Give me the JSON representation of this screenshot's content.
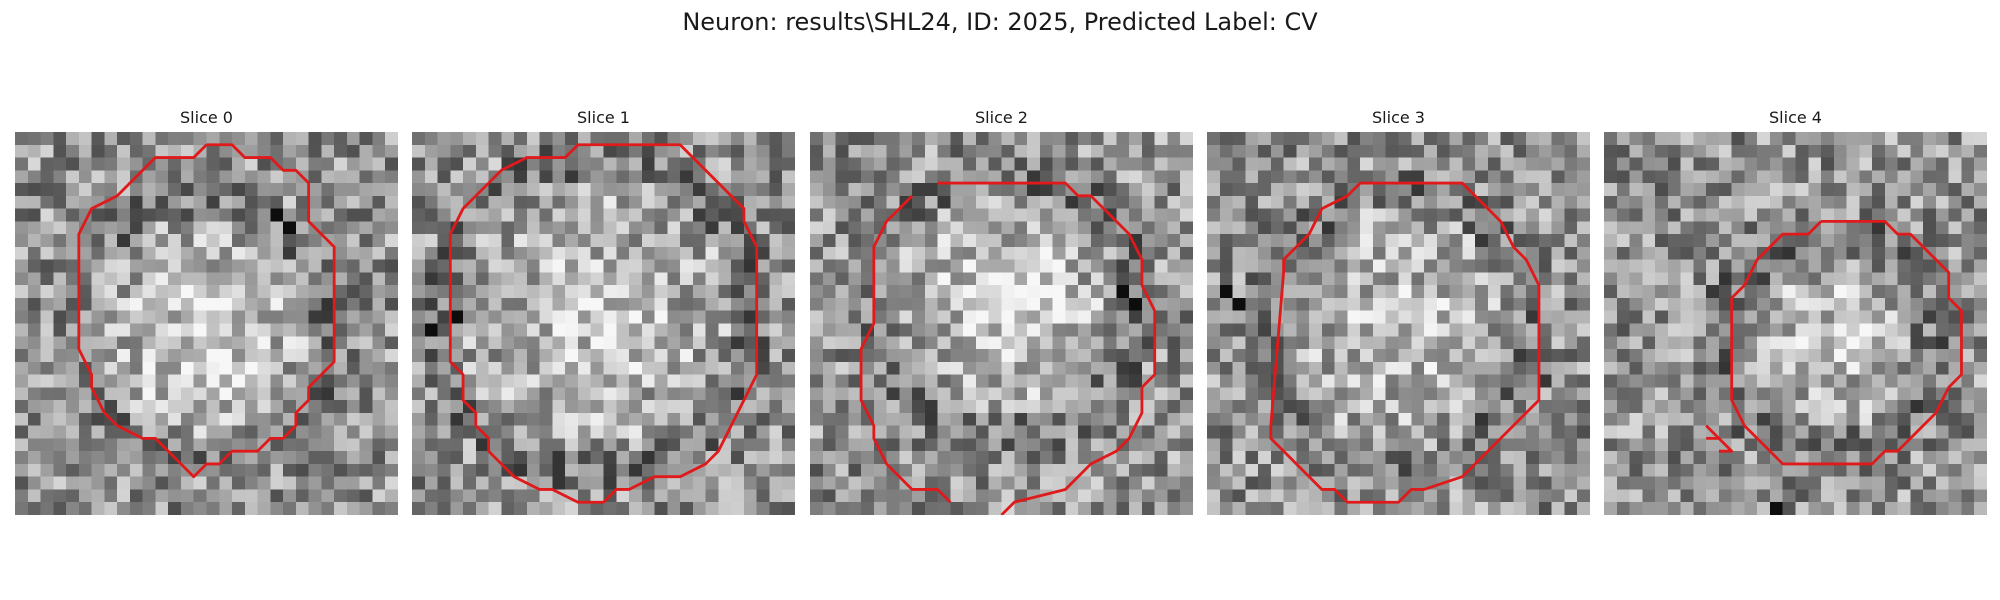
{
  "figure": {
    "title": "Neuron: results\\SHL24, ID: 2025, Predicted Label: CV"
  },
  "colors": {
    "contour": "#e0191b",
    "background": "#ffffff"
  },
  "panels": [
    {
      "title": "Slice 0",
      "seed": 11,
      "blobs": [
        {
          "cx": 14.5,
          "cy": 15.5,
          "r": 9,
          "amp": 0.22
        }
      ],
      "dark_spots": [
        [
          20,
          6
        ],
        [
          21,
          7
        ]
      ],
      "contours": [
        [
          [
            15,
            1
          ],
          [
            17,
            1
          ],
          [
            18,
            2
          ],
          [
            20,
            2
          ],
          [
            21,
            3
          ],
          [
            22,
            3
          ],
          [
            23,
            4
          ],
          [
            23,
            7
          ],
          [
            25,
            9
          ],
          [
            25,
            18
          ],
          [
            23,
            20
          ],
          [
            23,
            21
          ],
          [
            22,
            22
          ],
          [
            22,
            23
          ],
          [
            21,
            24
          ],
          [
            20,
            24
          ],
          [
            19,
            25
          ],
          [
            17,
            25
          ],
          [
            16,
            26
          ],
          [
            15,
            26
          ],
          [
            14,
            27
          ],
          [
            13,
            26
          ],
          [
            11,
            24
          ],
          [
            10,
            24
          ],
          [
            8,
            23
          ],
          [
            7,
            22
          ],
          [
            6,
            20
          ],
          [
            6,
            19
          ],
          [
            5,
            17
          ],
          [
            5,
            15
          ],
          [
            5,
            8
          ],
          [
            6,
            6
          ],
          [
            8,
            5
          ],
          [
            10,
            3
          ],
          [
            11,
            2
          ],
          [
            14,
            2
          ]
        ]
      ]
    },
    {
      "title": "Slice 1",
      "seed": 23,
      "blobs": [
        {
          "cx": 14.5,
          "cy": 14.5,
          "r": 11,
          "amp": 0.18
        }
      ],
      "dark_spots": [
        [
          3,
          14
        ],
        [
          1,
          15
        ]
      ],
      "contours": [
        [
          [
            13,
            1
          ],
          [
            21,
            1
          ],
          [
            22,
            2
          ],
          [
            23,
            3
          ],
          [
            25,
            5
          ],
          [
            26,
            6
          ],
          [
            26,
            7
          ],
          [
            27,
            9
          ],
          [
            27,
            14
          ],
          [
            27,
            19
          ],
          [
            26,
            21
          ],
          [
            25,
            23
          ],
          [
            24,
            25
          ],
          [
            23,
            26
          ],
          [
            21,
            27
          ],
          [
            19,
            27
          ],
          [
            17,
            28
          ],
          [
            16,
            28
          ],
          [
            15,
            29
          ],
          [
            13,
            29
          ],
          [
            11,
            28
          ],
          [
            10,
            28
          ],
          [
            8,
            27
          ],
          [
            7,
            26
          ],
          [
            6,
            25
          ],
          [
            6,
            24
          ],
          [
            5,
            23
          ],
          [
            5,
            22
          ],
          [
            4,
            21
          ],
          [
            4,
            19
          ],
          [
            3,
            18
          ],
          [
            3,
            8
          ],
          [
            4,
            6
          ],
          [
            6,
            4
          ],
          [
            7,
            3
          ],
          [
            9,
            2
          ],
          [
            12,
            2
          ]
        ]
      ]
    },
    {
      "title": "Slice 2",
      "seed": 37,
      "blobs": [
        {
          "cx": 15.5,
          "cy": 13.5,
          "r": 9,
          "amp": 0.24
        }
      ],
      "dark_spots": [
        [
          24,
          12
        ],
        [
          25,
          13
        ]
      ],
      "contours": [
        [
          [
            10,
            4
          ],
          [
            20,
            4
          ],
          [
            21,
            5
          ],
          [
            22,
            5
          ],
          [
            24,
            7
          ],
          [
            25,
            8
          ],
          [
            26,
            10
          ],
          [
            26,
            12
          ],
          [
            27,
            14
          ],
          [
            27,
            19
          ],
          [
            26,
            20
          ],
          [
            26,
            22
          ],
          [
            25,
            24
          ],
          [
            24,
            25
          ],
          [
            22,
            26
          ],
          [
            21,
            27
          ],
          [
            20,
            28
          ],
          [
            16,
            29
          ],
          [
            15,
            30
          ]
        ],
        [
          [
            11,
            29
          ],
          [
            10,
            28
          ],
          [
            8,
            28
          ],
          [
            7,
            27
          ],
          [
            6,
            26
          ],
          [
            5,
            24
          ],
          [
            5,
            23
          ],
          [
            4,
            21
          ],
          [
            4,
            17
          ],
          [
            5,
            15
          ],
          [
            5,
            9
          ],
          [
            6,
            7
          ],
          [
            8,
            5
          ]
        ]
      ]
    },
    {
      "title": "Slice 3",
      "seed": 53,
      "blobs": [
        {
          "cx": 15,
          "cy": 15.5,
          "r": 9.5,
          "amp": 0.16
        }
      ],
      "dark_spots": [
        [
          2,
          13
        ],
        [
          1,
          12
        ]
      ],
      "contours": [
        [
          [
            12,
            4
          ],
          [
            20,
            4
          ],
          [
            21,
            5
          ],
          [
            23,
            7
          ],
          [
            24,
            9
          ],
          [
            25,
            10
          ],
          [
            26,
            12
          ],
          [
            26,
            21
          ],
          [
            24,
            23
          ],
          [
            23,
            24
          ],
          [
            21,
            26
          ],
          [
            20,
            27
          ],
          [
            17,
            28
          ],
          [
            16,
            28
          ],
          [
            15,
            29
          ],
          [
            11,
            29
          ],
          [
            10,
            28
          ],
          [
            9,
            28
          ],
          [
            8,
            27
          ],
          [
            6,
            25
          ],
          [
            5,
            24
          ],
          [
            5,
            23
          ],
          [
            6,
            11
          ],
          [
            6,
            10
          ],
          [
            7,
            9
          ],
          [
            8,
            8
          ],
          [
            9,
            6
          ],
          [
            11,
            5
          ]
        ]
      ]
    },
    {
      "title": "Slice 4",
      "seed": 71,
      "blobs": [
        {
          "cx": 17.5,
          "cy": 16.5,
          "r": 7,
          "amp": 0.18
        }
      ],
      "dark_spots": [
        [
          13,
          29
        ],
        [
          14,
          30
        ]
      ],
      "contours": [
        [
          [
            17,
            7
          ],
          [
            22,
            7
          ],
          [
            23,
            8
          ],
          [
            24,
            8
          ],
          [
            26,
            10
          ],
          [
            27,
            11
          ],
          [
            27,
            13
          ],
          [
            28,
            14
          ],
          [
            28,
            19
          ],
          [
            27,
            20
          ],
          [
            26,
            22
          ],
          [
            24,
            24
          ],
          [
            23,
            25
          ],
          [
            22,
            25
          ],
          [
            21,
            26
          ],
          [
            17,
            26
          ],
          [
            14,
            26
          ],
          [
            13,
            25
          ],
          [
            12,
            24
          ],
          [
            11,
            23
          ],
          [
            10,
            21
          ],
          [
            10,
            13
          ],
          [
            11,
            12
          ],
          [
            12,
            10
          ],
          [
            13,
            9
          ],
          [
            14,
            8
          ],
          [
            16,
            8
          ]
        ],
        [
          [
            8,
            23
          ],
          [
            9,
            24
          ],
          [
            8,
            24
          ]
        ],
        [
          [
            9,
            24
          ],
          [
            10,
            25
          ],
          [
            9,
            25
          ]
        ]
      ]
    }
  ]
}
